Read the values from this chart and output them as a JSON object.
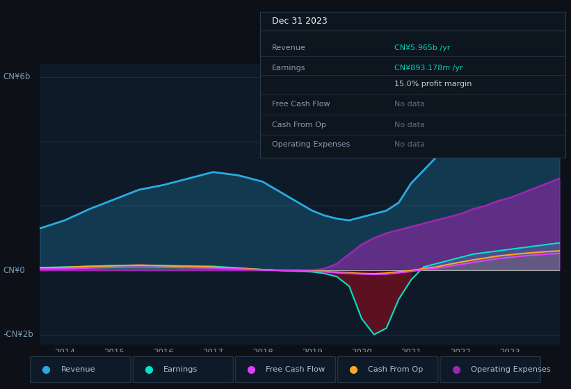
{
  "bg_color": "#0d1117",
  "plot_bg_color": "#0e1a27",
  "grid_color": "#1e2d3d",
  "title_box_bg": "#0e1a27",
  "title_box_border": "#2a3a4a",
  "years": [
    2013.5,
    2014.0,
    2014.5,
    2015.0,
    2015.5,
    2016.0,
    2016.5,
    2017.0,
    2017.5,
    2018.0,
    2018.5,
    2019.0,
    2019.25,
    2019.5,
    2019.75,
    2020.0,
    2020.25,
    2020.5,
    2020.75,
    2021.0,
    2021.25,
    2021.5,
    2021.75,
    2022.0,
    2022.25,
    2022.5,
    2022.75,
    2023.0,
    2023.25,
    2023.5,
    2023.75,
    2024.0
  ],
  "revenue": [
    1.3,
    1.55,
    1.9,
    2.2,
    2.5,
    2.65,
    2.85,
    3.05,
    2.95,
    2.75,
    2.3,
    1.85,
    1.7,
    1.6,
    1.55,
    1.65,
    1.75,
    1.85,
    2.1,
    2.7,
    3.1,
    3.5,
    3.9,
    4.2,
    4.45,
    4.7,
    5.0,
    5.2,
    5.45,
    5.65,
    5.85,
    6.0
  ],
  "earnings": [
    0.08,
    0.1,
    0.12,
    0.14,
    0.15,
    0.14,
    0.13,
    0.12,
    0.07,
    0.02,
    -0.02,
    -0.05,
    -0.1,
    -0.2,
    -0.5,
    -1.5,
    -2.0,
    -1.8,
    -0.9,
    -0.3,
    0.1,
    0.2,
    0.3,
    0.4,
    0.5,
    0.55,
    0.6,
    0.65,
    0.7,
    0.75,
    0.8,
    0.85
  ],
  "free_cash_flow": [
    0.04,
    0.05,
    0.07,
    0.09,
    0.1,
    0.09,
    0.08,
    0.07,
    0.04,
    0.01,
    -0.01,
    -0.03,
    -0.05,
    -0.08,
    -0.1,
    -0.12,
    -0.13,
    -0.12,
    -0.08,
    -0.04,
    0.02,
    0.06,
    0.12,
    0.18,
    0.24,
    0.3,
    0.36,
    0.4,
    0.44,
    0.47,
    0.5,
    0.52
  ],
  "cash_from_op": [
    0.07,
    0.09,
    0.12,
    0.14,
    0.16,
    0.14,
    0.12,
    0.1,
    0.06,
    0.02,
    -0.01,
    -0.02,
    -0.04,
    -0.06,
    -0.08,
    -0.1,
    -0.11,
    -0.09,
    -0.05,
    -0.01,
    0.05,
    0.1,
    0.18,
    0.25,
    0.32,
    0.38,
    0.44,
    0.48,
    0.52,
    0.55,
    0.58,
    0.6
  ],
  "operating_expenses": [
    0.0,
    0.0,
    0.0,
    0.0,
    0.0,
    0.0,
    0.0,
    0.0,
    0.0,
    0.0,
    0.0,
    0.0,
    0.05,
    0.2,
    0.5,
    0.8,
    1.0,
    1.15,
    1.25,
    1.35,
    1.45,
    1.55,
    1.65,
    1.75,
    1.9,
    2.0,
    2.15,
    2.25,
    2.4,
    2.55,
    2.7,
    2.85
  ],
  "revenue_color": "#29abe2",
  "earnings_color": "#00e5c8",
  "free_cash_flow_color": "#e040fb",
  "cash_from_op_color": "#ffa726",
  "operating_expenses_color": "#9c27b0",
  "neg_earnings_color": "#6b1020",
  "ylim_min": -2.3,
  "ylim_max": 6.4,
  "xtick_years": [
    2014,
    2015,
    2016,
    2017,
    2018,
    2019,
    2020,
    2021,
    2022,
    2023
  ],
  "legend_items": [
    "Revenue",
    "Earnings",
    "Free Cash Flow",
    "Cash From Op",
    "Operating Expenses"
  ],
  "legend_colors": [
    "#29abe2",
    "#00e5c8",
    "#e040fb",
    "#ffa726",
    "#9c27b0"
  ],
  "info_box_title": "Dec 31 2023",
  "info_rows_label": [
    "Revenue",
    "Earnings",
    "",
    "Free Cash Flow",
    "Cash From Op",
    "Operating Expenses"
  ],
  "info_rows_value": [
    "CN¥5.965b /yr",
    "CN¥893.178m /yr",
    "15.0% profit margin",
    "No data",
    "No data",
    "No data"
  ],
  "info_rows_val_color": [
    "#00d4b8",
    "#00d4b8",
    "#cccccc",
    "#5a7080",
    "#5a7080",
    "#5a7080"
  ]
}
